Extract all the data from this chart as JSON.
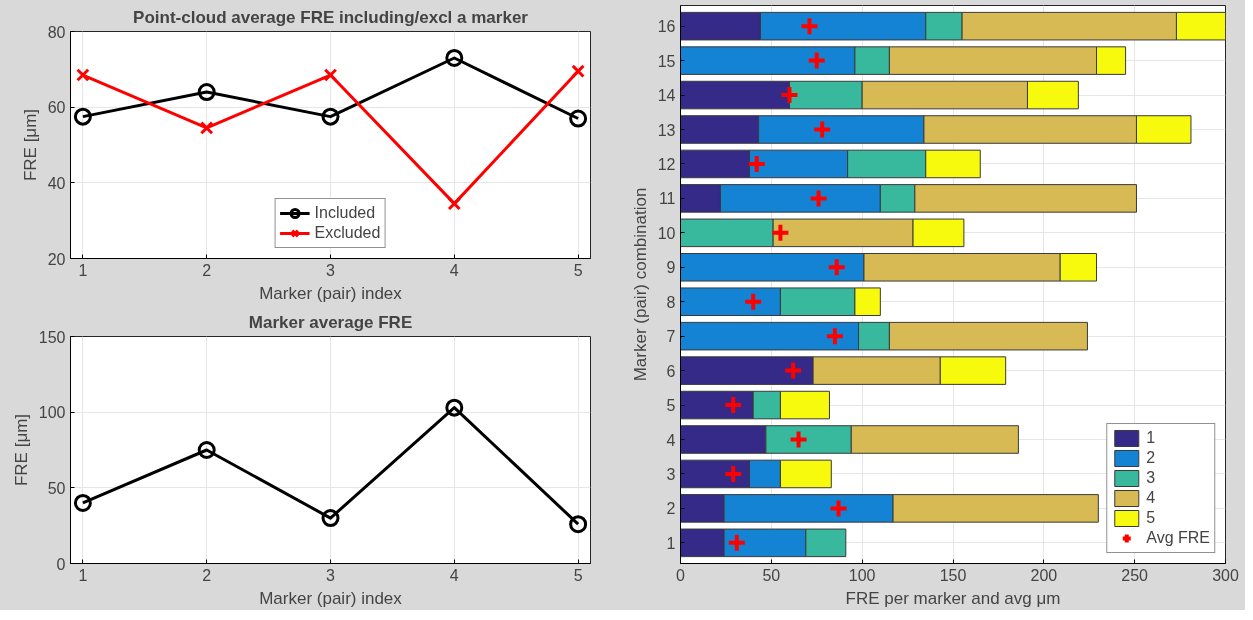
{
  "chart_data": [
    {
      "type": "line",
      "title": "Point-cloud average FRE including/excl a marker",
      "xlabel": "Marker (pair) index",
      "ylabel": "FRE [μm]",
      "x": [
        1,
        2,
        3,
        4,
        5
      ],
      "xlim": [
        0.9,
        5.1
      ],
      "xticks": [
        1,
        2,
        3,
        4,
        5
      ],
      "ylim": [
        20,
        80
      ],
      "yticks": [
        20,
        40,
        60,
        80
      ],
      "grid": true,
      "legend": "bottom",
      "series": [
        {
          "name": "Included",
          "color": "#000000",
          "marker": "circle",
          "values": [
            57.5,
            64,
            57.5,
            73,
            57
          ]
        },
        {
          "name": "Excluded",
          "color": "#ff0000",
          "marker": "x",
          "values": [
            68.5,
            54.5,
            68.5,
            34.5,
            69.5
          ]
        }
      ]
    },
    {
      "type": "line",
      "title": "Marker average FRE",
      "xlabel": "Marker (pair) index",
      "ylabel": "FRE [μm]",
      "x": [
        1,
        2,
        3,
        4,
        5
      ],
      "xlim": [
        0.9,
        5.1
      ],
      "xticks": [
        1,
        2,
        3,
        4,
        5
      ],
      "ylim": [
        0,
        150
      ],
      "yticks": [
        0,
        50,
        100,
        150
      ],
      "grid": true,
      "marker": "circle",
      "series": [
        {
          "color": "#000000",
          "values": [
            40,
            75,
            30,
            103,
            26
          ]
        }
      ]
    },
    {
      "type": "bar",
      "orientation": "horizontal",
      "stacked": true,
      "xlabel": "FRE per marker and avg μm",
      "ylabel": "Marker (pair) combination",
      "categories": [
        "16",
        "15",
        "14",
        "13",
        "12",
        "11",
        "10",
        "9",
        "8",
        "7",
        "6",
        "5",
        "4",
        "3",
        "2",
        "1"
      ],
      "xlim": [
        0,
        300
      ],
      "xticks": [
        0,
        50,
        100,
        150,
        200,
        250,
        300
      ],
      "grid": true,
      "legend": "bottom right",
      "series": [
        {
          "name": "1",
          "color": "#352a87",
          "values": [
            44,
            null,
            60,
            43,
            38,
            22,
            null,
            null,
            null,
            null,
            73,
            40,
            47,
            38,
            24,
            24
          ]
        },
        {
          "name": "2",
          "color": "#1483d4",
          "values": [
            91,
            96,
            null,
            91,
            54,
            88,
            null,
            101,
            55,
            98,
            null,
            null,
            null,
            17,
            93,
            45
          ]
        },
        {
          "name": "3",
          "color": "#38b99e",
          "values": [
            20,
            19,
            40,
            null,
            43,
            19,
            51,
            null,
            41,
            17,
            null,
            15,
            47,
            null,
            null,
            22
          ]
        },
        {
          "name": "4",
          "color": "#d8ba55",
          "values": [
            118,
            114,
            91,
            117,
            null,
            122,
            77,
            108,
            null,
            109,
            70,
            null,
            92,
            null,
            113,
            null
          ]
        },
        {
          "name": "5",
          "color": "#f8fa0d",
          "values": [
            27,
            16,
            28,
            30,
            30,
            null,
            28,
            20,
            14,
            null,
            36,
            27,
            null,
            28,
            null,
            null
          ]
        },
        {
          "name": "Avg FRE",
          "type": "scatter",
          "marker": "cross",
          "color": "#ff0000",
          "x": [
            "16",
            "15",
            "14",
            "13",
            "12",
            "11",
            "10",
            "9",
            "8",
            "7",
            "6",
            "5",
            "4",
            "3",
            "2",
            "1"
          ],
          "values": [
            71,
            75,
            60,
            78,
            42,
            76,
            55,
            86,
            40,
            85,
            62,
            29,
            65,
            29,
            87,
            31
          ]
        }
      ]
    }
  ]
}
